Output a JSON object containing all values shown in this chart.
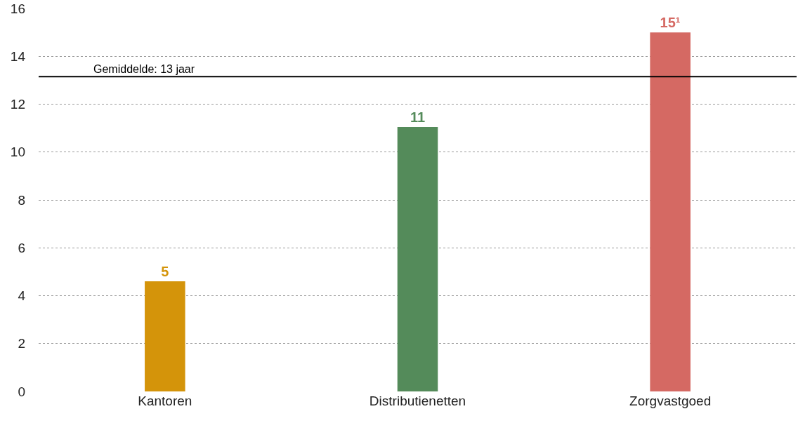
{
  "chart_data": {
    "type": "bar",
    "categories": [
      "Kantoren",
      "Distributienetten",
      "Zorgvastgoed"
    ],
    "values": [
      4.6,
      11.05,
      15
    ],
    "colors": [
      "#d4940a",
      "#548b5a",
      "#d56963"
    ],
    "value_labels": [
      "5",
      "11",
      "15¹"
    ],
    "ylim": [
      0,
      16
    ],
    "yticks": [
      0,
      2,
      4,
      6,
      8,
      10,
      12,
      14,
      16
    ],
    "grid": "y",
    "ref_lines": [
      {
        "axis": "y",
        "value": 13.15,
        "label": "Gemiddelde: 13 jaar",
        "color": "#000000",
        "line_style": "solid"
      }
    ]
  }
}
